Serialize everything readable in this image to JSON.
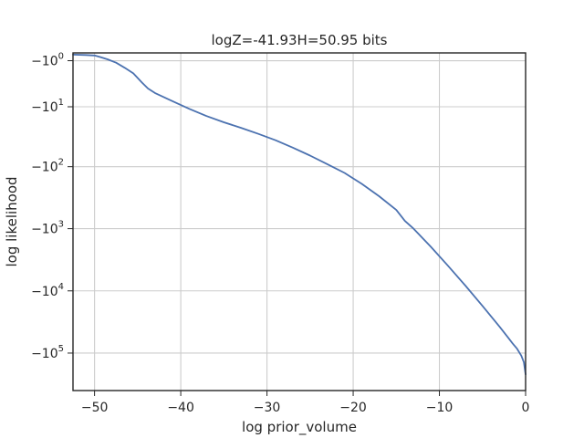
{
  "chart_data": {
    "type": "line",
    "title": "logZ=-41.93H=50.95 bits",
    "xlabel": "log prior_volume",
    "ylabel": "log likelihood",
    "xlim": [
      -52.5,
      0
    ],
    "yscale": "symlog",
    "ylim": [
      -400000,
      -0.5
    ],
    "grid": true,
    "x_ticks": [
      -50,
      -40,
      -30,
      -20,
      -10,
      0
    ],
    "x_tick_labels": [
      "−50",
      "−40",
      "−30",
      "−20",
      "−10",
      "0"
    ],
    "y_ticks": [
      -1,
      -10,
      -100,
      -1000,
      -10000,
      -100000
    ],
    "y_tick_labels": [
      {
        "base": "−10",
        "exp": "0"
      },
      {
        "base": "−10",
        "exp": "1"
      },
      {
        "base": "−10",
        "exp": "2"
      },
      {
        "base": "−10",
        "exp": "3"
      },
      {
        "base": "−10",
        "exp": "4"
      },
      {
        "base": "−10",
        "exp": "5"
      }
    ],
    "series": [
      {
        "color": "#4c72b0",
        "x": [
          -52.5,
          -51,
          -50,
          -49.3,
          -48.5,
          -47.5,
          -46.5,
          -45.5,
          -44.5,
          -43.8,
          -43,
          -41,
          -39,
          -37,
          -35,
          -33,
          -31,
          -29,
          -27,
          -25,
          -23,
          -21,
          -19,
          -17,
          -15,
          -14,
          -13,
          -11,
          -9,
          -7,
          -5,
          -3,
          -2,
          -1.5,
          -1,
          -0.5,
          -0.2,
          0
        ],
        "y": [
          -0.6,
          -0.62,
          -0.65,
          -0.75,
          -0.9,
          -1.15,
          -1.6,
          -2.2,
          -3.5,
          -4.6,
          -5.6,
          -7.9,
          -10.9,
          -14.5,
          -18.5,
          -23,
          -29,
          -37,
          -49,
          -66,
          -91,
          -126,
          -190,
          -300,
          -500,
          -750,
          -1000,
          -1950,
          -3950,
          -8200,
          -17500,
          -38000,
          -57000,
          -70000,
          -85000,
          -110000,
          -140000,
          -220000
        ]
      }
    ]
  }
}
